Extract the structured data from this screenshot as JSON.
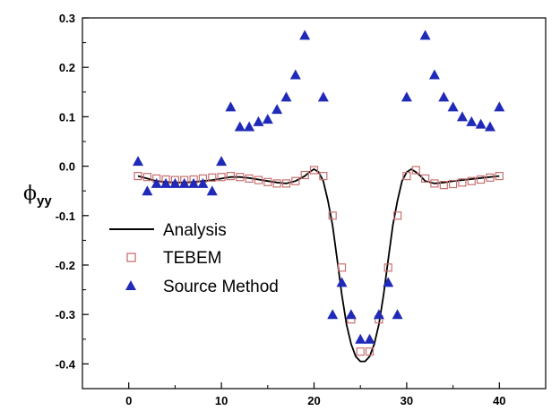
{
  "chart_data": {
    "type": "scatter",
    "title": "",
    "xlabel": "",
    "ylabel": "ϕ",
    "ylabel_subscript": "yy",
    "xlim": [
      -5,
      45
    ],
    "ylim": [
      -0.45,
      0.3
    ],
    "xticks": [
      0,
      10,
      20,
      30,
      40
    ],
    "yticks": [
      0.3,
      0.2,
      0.1,
      0.0,
      -0.1,
      -0.2,
      -0.3,
      -0.4
    ],
    "ytick_labels": [
      "0.3",
      "0.2",
      "0.1",
      "0.0",
      "-0.1",
      "-0.2",
      "-0.3",
      "-0.4"
    ],
    "grid": false,
    "legend_position": "lower-left",
    "series": [
      {
        "name": "Analysis",
        "style": "line",
        "color": "#000000",
        "x": [
          1,
          2,
          3,
          4,
          5,
          6,
          7,
          8,
          9,
          10,
          11,
          12,
          13,
          14,
          15,
          16,
          17,
          18,
          19,
          19.5,
          20,
          20.5,
          21,
          21.5,
          22,
          22.5,
          23,
          23.5,
          24,
          24.5,
          25,
          25.5,
          26,
          26.5,
          27,
          27.5,
          28,
          28.5,
          29,
          29.5,
          30,
          30.5,
          31,
          31.5,
          32,
          33,
          34,
          35,
          36,
          37,
          38,
          39,
          40
        ],
        "y": [
          -0.02,
          -0.025,
          -0.03,
          -0.032,
          -0.033,
          -0.033,
          -0.032,
          -0.03,
          -0.028,
          -0.025,
          -0.022,
          -0.022,
          -0.024,
          -0.027,
          -0.03,
          -0.033,
          -0.035,
          -0.03,
          -0.02,
          -0.012,
          -0.006,
          -0.012,
          -0.03,
          -0.07,
          -0.12,
          -0.19,
          -0.26,
          -0.32,
          -0.36,
          -0.385,
          -0.395,
          -0.395,
          -0.385,
          -0.36,
          -0.32,
          -0.26,
          -0.19,
          -0.12,
          -0.07,
          -0.03,
          -0.012,
          -0.006,
          -0.012,
          -0.02,
          -0.03,
          -0.035,
          -0.033,
          -0.03,
          -0.028,
          -0.026,
          -0.024,
          -0.022,
          -0.02
        ]
      },
      {
        "name": "TEBEM",
        "style": "square",
        "color": "#c87070",
        "x": [
          1,
          2,
          3,
          4,
          5,
          6,
          7,
          8,
          9,
          10,
          11,
          12,
          13,
          14,
          15,
          16,
          17,
          18,
          19,
          20,
          21,
          22,
          23,
          24,
          25,
          26,
          27,
          28,
          29,
          30,
          31,
          32,
          33,
          34,
          35,
          36,
          37,
          38,
          39,
          40
        ],
        "y": [
          -0.02,
          -0.022,
          -0.025,
          -0.027,
          -0.028,
          -0.028,
          -0.027,
          -0.025,
          -0.023,
          -0.022,
          -0.02,
          -0.022,
          -0.025,
          -0.028,
          -0.032,
          -0.035,
          -0.035,
          -0.03,
          -0.018,
          -0.008,
          -0.02,
          -0.1,
          -0.205,
          -0.31,
          -0.375,
          -0.375,
          -0.31,
          -0.205,
          -0.1,
          -0.02,
          -0.008,
          -0.025,
          -0.035,
          -0.038,
          -0.036,
          -0.033,
          -0.03,
          -0.027,
          -0.023,
          -0.02
        ]
      },
      {
        "name": "Source Method",
        "style": "triangle",
        "color": "#1f2ab8",
        "x": [
          1,
          2,
          3,
          4,
          5,
          6,
          7,
          8,
          9,
          10,
          11,
          12,
          13,
          14,
          15,
          16,
          17,
          18,
          19,
          21,
          22,
          23,
          24,
          25,
          26,
          27,
          28,
          29,
          30,
          32,
          33,
          34,
          35,
          36,
          37,
          38,
          39,
          40
        ],
        "y": [
          0.01,
          -0.05,
          -0.035,
          -0.035,
          -0.035,
          -0.035,
          -0.035,
          -0.035,
          -0.05,
          0.01,
          0.12,
          0.08,
          0.08,
          0.09,
          0.095,
          0.115,
          0.14,
          0.185,
          0.265,
          0.14,
          -0.3,
          -0.235,
          -0.3,
          -0.35,
          -0.35,
          -0.3,
          -0.235,
          -0.3,
          0.14,
          0.265,
          0.185,
          0.14,
          0.12,
          0.1,
          0.09,
          0.085,
          0.08,
          0.12
        ]
      }
    ]
  }
}
